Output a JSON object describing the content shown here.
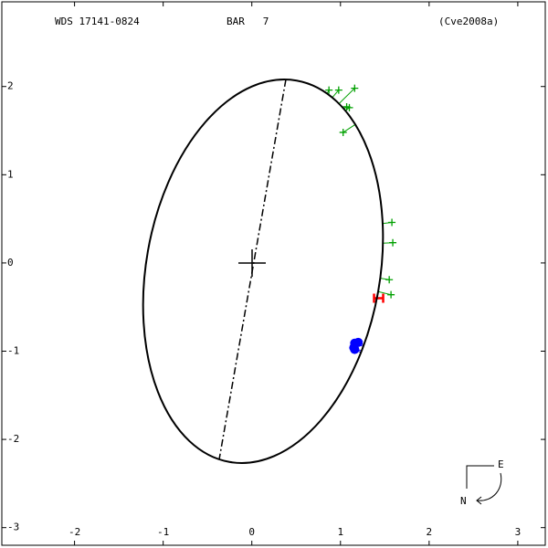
{
  "header": {
    "wds": "WDS 17141-0824",
    "name": "BAR   7",
    "reference": "(Cve2008a)"
  },
  "chart_data": {
    "type": "orbit",
    "xlim": [
      -2.82,
      3.31
    ],
    "ylim": [
      -3.2,
      2.96
    ],
    "xticks": [
      -2,
      -1,
      0,
      1,
      2,
      3
    ],
    "yticks": [
      -3,
      -2,
      -1,
      0,
      1,
      2
    ],
    "series": [
      {
        "color": "#00a000",
        "marker": "plus",
        "x": [
          0.87,
          0.98,
          1.16,
          1.07,
          1.1,
          1.03,
          1.58,
          1.59,
          1.55,
          1.57
        ],
        "values": [
          1.96,
          1.96,
          1.98,
          1.77,
          1.76,
          1.48,
          0.46,
          0.23,
          -0.19,
          -0.36
        ]
      },
      {
        "color": "#0000ff",
        "marker": "dot",
        "x": [
          1.16,
          1.2,
          1.15,
          1.16
        ],
        "values": [
          -0.91,
          -0.9,
          -0.96,
          -0.98
        ]
      },
      {
        "color": "#ff0000",
        "marker": "bar",
        "x": [
          1.43
        ],
        "values": [
          -0.4
        ]
      }
    ]
  },
  "compass": {
    "east": "E",
    "north": "N"
  }
}
